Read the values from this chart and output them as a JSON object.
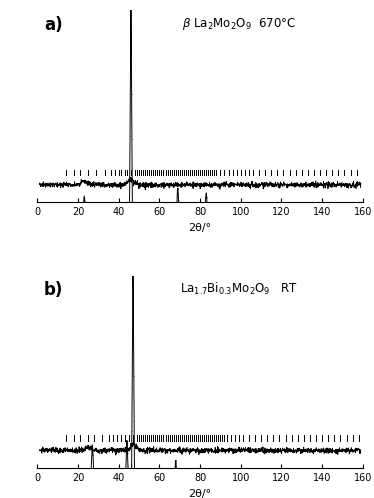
{
  "fig_width": 3.74,
  "fig_height": 4.98,
  "dpi": 100,
  "background_color": "#ffffff",
  "x_min": 0,
  "x_max": 160,
  "xlabel": "2θ/°",
  "xlabel_fontsize": 8,
  "tick_fontsize": 7,
  "label_a": "a)",
  "label_b": "b)",
  "line_color": "#000000",
  "dot_color": "#444444",
  "tick_mark_color": "#000000",
  "panel_a": {
    "tick_positions": [
      14,
      18,
      21,
      25,
      29,
      33,
      36,
      38,
      40,
      41,
      43,
      44,
      46,
      48,
      49,
      50,
      51,
      52,
      53,
      54,
      55,
      56,
      57,
      58,
      59,
      60,
      61,
      62,
      63,
      64,
      65,
      66,
      67,
      68,
      69,
      70,
      71,
      72,
      73,
      74,
      75,
      76,
      77,
      78,
      79,
      80,
      81,
      82,
      83,
      84,
      85,
      86,
      87,
      88,
      90,
      92,
      94,
      96,
      98,
      100,
      102,
      104,
      106,
      109,
      112,
      115,
      118,
      121,
      124,
      127,
      130,
      133,
      136,
      139,
      142,
      145,
      148,
      151,
      154,
      157
    ]
  },
  "panel_b": {
    "tick_positions": [
      14,
      18,
      21,
      25,
      28,
      32,
      35,
      37,
      39,
      41,
      43,
      45,
      47,
      49,
      50,
      51,
      52,
      53,
      54,
      55,
      56,
      57,
      58,
      59,
      60,
      61,
      62,
      63,
      64,
      65,
      66,
      67,
      68,
      69,
      70,
      71,
      72,
      73,
      74,
      75,
      76,
      77,
      78,
      79,
      80,
      81,
      82,
      83,
      84,
      85,
      86,
      87,
      88,
      89,
      90,
      91,
      92,
      93,
      95,
      97,
      99,
      101,
      104,
      107,
      110,
      113,
      116,
      119,
      122,
      125,
      128,
      131,
      134,
      137,
      140,
      143,
      146,
      149,
      152,
      155,
      158
    ]
  }
}
